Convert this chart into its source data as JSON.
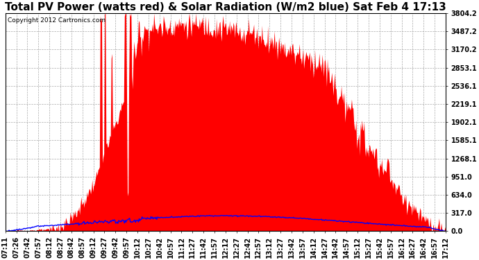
{
  "title": "Total PV Power (watts red) & Solar Radiation (W/m2 blue) Sat Feb 4 17:13",
  "copyright_text": "Copyright 2012 Cartronics.com",
  "background_color": "#ffffff",
  "plot_bg_color": "#ffffff",
  "grid_color": "#aaaaaa",
  "pv_color": "red",
  "solar_color": "blue",
  "y_max": 3804.2,
  "y_min": 0.0,
  "y_ticks": [
    0.0,
    317.0,
    634.0,
    951.0,
    1268.1,
    1585.1,
    1902.1,
    2219.1,
    2536.1,
    2853.1,
    3170.2,
    3487.2,
    3804.2
  ],
  "x_tick_labels": [
    "07:11",
    "07:26",
    "07:42",
    "07:57",
    "08:12",
    "08:27",
    "08:42",
    "08:57",
    "09:12",
    "09:27",
    "09:42",
    "09:57",
    "10:12",
    "10:27",
    "10:42",
    "10:57",
    "11:12",
    "11:27",
    "11:42",
    "11:57",
    "12:12",
    "12:27",
    "12:42",
    "12:57",
    "13:12",
    "13:27",
    "13:42",
    "13:57",
    "14:12",
    "14:27",
    "14:42",
    "14:57",
    "15:12",
    "15:27",
    "15:42",
    "15:57",
    "16:12",
    "16:27",
    "16:42",
    "16:57",
    "17:12"
  ],
  "n_points": 600,
  "title_fontsize": 11,
  "tick_fontsize": 7,
  "copyright_fontsize": 6.5
}
